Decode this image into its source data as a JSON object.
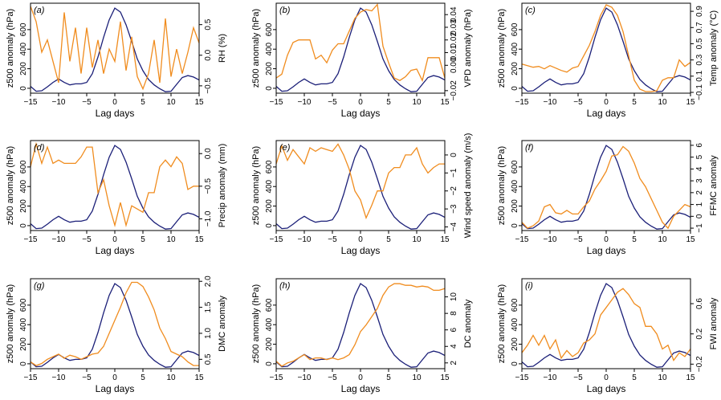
{
  "colors": {
    "z500": "#1b1f78",
    "variable": "#f08c1e",
    "frame": "#000000"
  },
  "x_axis": {
    "label": "Lag days",
    "ticks": [
      -15,
      -10,
      -5,
      0,
      5,
      10,
      15
    ],
    "tick_labels": [
      "−15",
      "−10",
      "−5",
      "0",
      "5",
      "10",
      "15"
    ],
    "xlim": [
      -15,
      15
    ]
  },
  "z500": {
    "label": "z500 anomaly (hPa)",
    "ticks": [
      0,
      200,
      400,
      600
    ],
    "tick_labels": [
      "0",
      "200",
      "400",
      "600"
    ],
    "ylim": [
      -50,
      870
    ],
    "lags": [
      -15,
      -14,
      -13,
      -12,
      -11,
      -10,
      -9,
      -8,
      -7,
      -6,
      -5,
      -4,
      -3,
      -2,
      -1,
      0,
      1,
      2,
      3,
      4,
      5,
      6,
      7,
      8,
      9,
      10,
      11,
      12,
      13,
      14,
      15
    ],
    "values": [
      20,
      -30,
      -25,
      15,
      60,
      95,
      60,
      35,
      45,
      45,
      60,
      150,
      320,
      520,
      700,
      820,
      780,
      650,
      480,
      300,
      180,
      90,
      35,
      -5,
      -35,
      -30,
      40,
      110,
      130,
      115,
      85
    ]
  },
  "chart_data": [
    {
      "type": "line",
      "panel": "(a)",
      "ylabel": "RH (%)",
      "ylim": [
        -0.62,
        0.85
      ],
      "y_ticks": [
        -0.5,
        0.0,
        0.5
      ],
      "y_tick_labels": [
        "−0.5",
        "0.0",
        "0.5"
      ],
      "x": [
        -15,
        -14,
        -13,
        -12,
        -11,
        -10,
        -9,
        -8,
        -7,
        -6,
        -5,
        -4,
        -3,
        -2,
        -1,
        0,
        1,
        2,
        3,
        4,
        5,
        6,
        7,
        8,
        9,
        10,
        11,
        12,
        13,
        14,
        15
      ],
      "series": [
        {
          "name": "z500 anomaly (hPa)",
          "axis": "left",
          "source": "z500"
        },
        {
          "name": "RH (%)",
          "axis": "right",
          "values": [
            0.8,
            0.55,
            0.05,
            0.25,
            -0.1,
            -0.45,
            0.7,
            -0.1,
            0.45,
            -0.3,
            0.45,
            -0.2,
            0.25,
            -0.3,
            0.1,
            -0.1,
            0.55,
            -0.25,
            0.3,
            -0.35,
            -0.55,
            -0.3,
            0.25,
            -0.45,
            0.6,
            -0.35,
            0.1,
            -0.3,
            0.05,
            0.45,
            0.2
          ]
        }
      ]
    },
    {
      "type": "line",
      "panel": "(b)",
      "ylabel": "VPD anomaly (hPa)",
      "ylim": [
        -0.022,
        0.049
      ],
      "y_ticks": [
        -0.02,
        0.0,
        0.01,
        0.02,
        0.03,
        0.04
      ],
      "y_tick_labels": [
        "−0.02",
        "0.00",
        "0.01",
        "0.02",
        "0.03",
        "0.04"
      ],
      "x": [
        -15,
        -14,
        -13,
        -12,
        -11,
        -10,
        -9,
        -8,
        -7,
        -6,
        -5,
        -4,
        -3,
        -2,
        -1,
        0,
        1,
        2,
        3,
        4,
        5,
        6,
        7,
        8,
        9,
        10,
        11,
        12,
        13,
        14,
        15
      ],
      "series": [
        {
          "name": "z500 anomaly (hPa)",
          "axis": "left",
          "source": "z500"
        },
        {
          "name": "VPD anomaly (hPa)",
          "axis": "right",
          "values": [
            -0.01,
            -0.007,
            0.008,
            0.018,
            0.02,
            0.02,
            0.02,
            0.005,
            0.008,
            0.002,
            0.012,
            0.017,
            0.017,
            0.027,
            0.037,
            0.042,
            0.044,
            0.043,
            0.048,
            0.015,
            0.002,
            -0.01,
            -0.012,
            -0.009,
            -0.004,
            -0.003,
            -0.012,
            0.006,
            0.006,
            0.006,
            -0.01
          ]
        }
      ]
    },
    {
      "type": "line",
      "panel": "(c)",
      "ylabel": "Temp anomaly (°C)",
      "ylim": [
        -0.11,
        1.0
      ],
      "y_ticks": [
        -0.1,
        0.1,
        0.3,
        0.5,
        0.7,
        0.9
      ],
      "y_tick_labels": [
        "−0.1",
        "0.1",
        "0.3",
        "0.5",
        "0.7",
        "0.9"
      ],
      "x": [
        -15,
        -14,
        -13,
        -12,
        -11,
        -10,
        -9,
        -8,
        -7,
        -6,
        -5,
        -4,
        -3,
        -2,
        -1,
        0,
        1,
        2,
        3,
        4,
        5,
        6,
        7,
        8,
        9,
        10,
        11,
        12,
        13,
        14,
        15
      ],
      "series": [
        {
          "name": "z500 anomaly (hPa)",
          "axis": "left",
          "source": "z500"
        },
        {
          "name": "Temp anomaly (°C)",
          "axis": "right",
          "values": [
            0.25,
            0.23,
            0.21,
            0.22,
            0.19,
            0.23,
            0.2,
            0.17,
            0.15,
            0.2,
            0.22,
            0.35,
            0.48,
            0.65,
            0.85,
            0.98,
            0.95,
            0.85,
            0.65,
            0.35,
            0.05,
            -0.06,
            -0.09,
            -0.09,
            -0.08,
            0.05,
            0.08,
            0.08,
            0.3,
            0.22,
            0.27
          ]
        }
      ]
    },
    {
      "type": "line",
      "panel": "(d)",
      "ylabel": "Precip anomaly (mm)",
      "ylim": [
        -1.18,
        0.2
      ],
      "y_ticks": [
        -1.0,
        -0.5,
        0.0
      ],
      "y_tick_labels": [
        "−1.0",
        "−0.5",
        "0.0"
      ],
      "x": [
        -15,
        -14,
        -13,
        -12,
        -11,
        -10,
        -9,
        -8,
        -7,
        -6,
        -5,
        -4,
        -3,
        -2,
        -1,
        0,
        1,
        2,
        3,
        4,
        5,
        6,
        7,
        8,
        9,
        10,
        11,
        12,
        13,
        14,
        15
      ],
      "series": [
        {
          "name": "z500 anomaly (hPa)",
          "axis": "left",
          "source": "z500"
        },
        {
          "name": "Precip anomaly (mm)",
          "axis": "right",
          "values": [
            -0.2,
            0.15,
            -0.15,
            0.1,
            -0.15,
            -0.1,
            -0.15,
            -0.15,
            -0.15,
            -0.05,
            0.1,
            0.1,
            -0.6,
            -0.4,
            -0.8,
            -1.1,
            -0.75,
            -1.1,
            -0.8,
            -0.85,
            -0.9,
            -0.6,
            -0.6,
            -0.2,
            -0.1,
            -0.2,
            -0.05,
            -0.15,
            -0.55,
            -0.5,
            -0.5
          ]
        }
      ]
    },
    {
      "type": "line",
      "panel": "(e)",
      "ylabel": "Wind speed anomaly (m/s)",
      "ylim": [
        -4.2,
        0.8
      ],
      "y_ticks": [
        -4,
        -3,
        -2,
        -1,
        0
      ],
      "y_tick_labels": [
        "−4",
        "−3",
        "−2",
        "−1",
        "0"
      ],
      "x": [
        -15,
        -14,
        -13,
        -12,
        -11,
        -10,
        -9,
        -8,
        -7,
        -6,
        -5,
        -4,
        -3,
        -2,
        -1,
        0,
        1,
        2,
        3,
        4,
        5,
        6,
        7,
        8,
        9,
        10,
        11,
        12,
        13,
        14,
        15
      ],
      "series": [
        {
          "name": "z500 anomaly (hPa)",
          "axis": "left",
          "source": "z500"
        },
        {
          "name": "Wind speed anomaly (m/s)",
          "axis": "right",
          "values": [
            -0.5,
            0.5,
            -0.3,
            0.3,
            -0.1,
            -0.5,
            0.4,
            0.2,
            0.4,
            0.3,
            0.2,
            0.6,
            0.0,
            -0.8,
            -2.0,
            -2.5,
            -3.5,
            -2.8,
            -2.0,
            -2.0,
            -1.0,
            -0.7,
            -0.7,
            0.0,
            0.0,
            0.4,
            -0.5,
            -1.0,
            -0.7,
            -0.5,
            -0.5
          ]
        }
      ]
    },
    {
      "type": "line",
      "panel": "(f)",
      "ylabel": "FFMC anomaly",
      "ylim": [
        -1.2,
        6.4
      ],
      "y_ticks": [
        -1,
        0,
        1,
        2,
        3,
        4,
        5,
        6
      ],
      "y_tick_labels": [
        "−1",
        "0",
        "1",
        "2",
        "3",
        "4",
        "5",
        "6"
      ],
      "x": [
        -15,
        -14,
        -13,
        -12,
        -11,
        -10,
        -9,
        -8,
        -7,
        -6,
        -5,
        -4,
        -3,
        -2,
        -1,
        0,
        1,
        2,
        3,
        4,
        5,
        6,
        7,
        8,
        9,
        10,
        11,
        12,
        13,
        14,
        15
      ],
      "series": [
        {
          "name": "z500 anomaly (hPa)",
          "axis": "left",
          "source": "z500"
        },
        {
          "name": "FFMC anomaly",
          "axis": "right",
          "values": [
            -0.5,
            -1.0,
            -0.8,
            -0.4,
            0.8,
            1.0,
            0.3,
            0.2,
            0.5,
            0.2,
            0.2,
            0.8,
            1.3,
            2.3,
            3.0,
            3.8,
            5.1,
            5.2,
            5.9,
            5.5,
            4.5,
            3.2,
            2.5,
            1.5,
            0.5,
            -0.5,
            -1.0,
            0.0,
            0.5,
            1.0,
            0.8
          ]
        }
      ]
    },
    {
      "type": "line",
      "panel": "(g)",
      "ylabel": "DMC anomaly",
      "ylim": [
        0.32,
        2.05
      ],
      "y_ticks": [
        0.5,
        1.0,
        1.5,
        2.0
      ],
      "y_tick_labels": [
        "0.5",
        "1.0",
        "1.5",
        "2.0"
      ],
      "x": [
        -15,
        -14,
        -13,
        -12,
        -11,
        -10,
        -9,
        -8,
        -7,
        -6,
        -5,
        -4,
        -3,
        -2,
        -1,
        0,
        1,
        2,
        3,
        4,
        5,
        6,
        7,
        8,
        9,
        10,
        11,
        12,
        13,
        14,
        15
      ],
      "series": [
        {
          "name": "z500 anomaly (hPa)",
          "axis": "left",
          "source": "z500"
        },
        {
          "name": "DMC anomaly",
          "axis": "right",
          "values": [
            0.45,
            0.38,
            0.42,
            0.5,
            0.55,
            0.6,
            0.52,
            0.58,
            0.55,
            0.5,
            0.55,
            0.6,
            0.62,
            0.75,
            1.0,
            1.25,
            1.5,
            1.78,
            1.98,
            1.98,
            1.9,
            1.7,
            1.45,
            1.1,
            0.9,
            0.65,
            0.6,
            0.55,
            0.45,
            0.38,
            0.38
          ]
        }
      ]
    },
    {
      "type": "line",
      "panel": "(h)",
      "ylabel": "DC anomaly",
      "ylim": [
        1.3,
        12.2
      ],
      "y_ticks": [
        2,
        4,
        6,
        8,
        10
      ],
      "y_tick_labels": [
        "2",
        "4",
        "6",
        "8",
        "10"
      ],
      "x": [
        -15,
        -14,
        -13,
        -12,
        -11,
        -10,
        -9,
        -8,
        -7,
        -6,
        -5,
        -4,
        -3,
        -2,
        -1,
        0,
        1,
        2,
        3,
        4,
        5,
        6,
        7,
        8,
        9,
        10,
        11,
        12,
        13,
        14,
        15
      ],
      "series": [
        {
          "name": "z500 anomaly (hPa)",
          "axis": "left",
          "source": "z500"
        },
        {
          "name": "DC anomaly",
          "axis": "right",
          "values": [
            2.2,
            1.6,
            2.0,
            2.2,
            2.6,
            3.0,
            2.4,
            2.6,
            2.6,
            2.4,
            2.6,
            2.4,
            2.6,
            3.0,
            4.2,
            5.8,
            6.6,
            7.6,
            8.6,
            10.2,
            11.2,
            11.6,
            11.6,
            11.4,
            11.4,
            11.2,
            11.3,
            11.2,
            10.8,
            10.8,
            11.0
          ]
        }
      ]
    },
    {
      "type": "line",
      "panel": "(i)",
      "ylabel": "FWI anomaly",
      "ylim": [
        -0.26,
        0.93
      ],
      "y_ticks": [
        -0.2,
        0.2,
        0.6
      ],
      "y_tick_labels": [
        "−0.2",
        "0.2",
        "0.6"
      ],
      "x": [
        -15,
        -14,
        -13,
        -12,
        -11,
        -10,
        -9,
        -8,
        -7,
        -6,
        -5,
        -4,
        -3,
        -2,
        -1,
        0,
        1,
        2,
        3,
        4,
        5,
        6,
        7,
        8,
        9,
        10,
        11,
        12,
        13,
        14,
        15
      ],
      "series": [
        {
          "name": "z500 anomaly (hPa)",
          "axis": "left",
          "source": "z500"
        },
        {
          "name": "FWI anomaly",
          "axis": "right",
          "values": [
            -0.05,
            0.05,
            0.18,
            0.05,
            0.18,
            0.0,
            0.12,
            -0.12,
            -0.02,
            -0.1,
            -0.05,
            0.08,
            0.12,
            0.2,
            0.45,
            0.55,
            0.65,
            0.75,
            0.8,
            0.72,
            0.6,
            0.55,
            0.3,
            0.3,
            0.2,
            0.0,
            0.05,
            -0.15,
            -0.05,
            -0.1,
            0.0
          ]
        }
      ]
    }
  ]
}
